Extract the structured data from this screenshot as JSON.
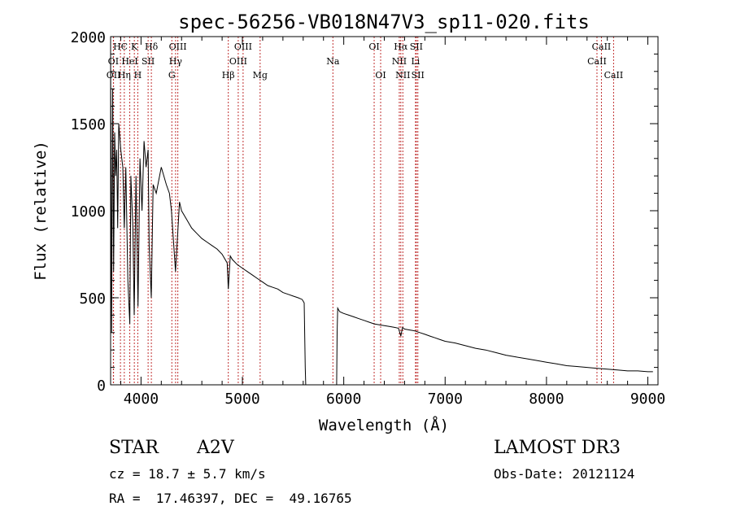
{
  "chart_data": {
    "type": "line",
    "title": "spec-56256-VB018N47V3_sp11-020.fits",
    "xlabel": "Wavelength (Å)",
    "ylabel": "Flux (relative)",
    "xlim": [
      3700,
      9100
    ],
    "ylim": [
      0,
      2000
    ],
    "x_ticks": [
      4000,
      5000,
      6000,
      7000,
      8000,
      9000
    ],
    "x_tick_labels": [
      "4000",
      "5000",
      "6000",
      "7000",
      "8000",
      "9000"
    ],
    "y_ticks": [
      0,
      500,
      1000,
      1500,
      2000
    ],
    "y_tick_labels": [
      "0",
      "500",
      "1000",
      "1500",
      "2000"
    ],
    "grid": false,
    "spectrum": {
      "name": "flux",
      "x": [
        3700,
        3710,
        3720,
        3730,
        3740,
        3750,
        3760,
        3770,
        3780,
        3800,
        3820,
        3835,
        3850,
        3870,
        3889,
        3900,
        3920,
        3933,
        3950,
        3970,
        3990,
        4010,
        4030,
        4050,
        4070,
        4080,
        4101,
        4120,
        4150,
        4200,
        4250,
        4280,
        4300,
        4340,
        4380,
        4400,
        4450,
        4500,
        4550,
        4600,
        4650,
        4700,
        4750,
        4800,
        4850,
        4861,
        4880,
        4900,
        4950,
        5000,
        5050,
        5100,
        5150,
        5200,
        5250,
        5300,
        5350,
        5400,
        5450,
        5500,
        5550,
        5590,
        5600,
        5610,
        5620,
        5625,
        5630,
        5700,
        5800,
        5900,
        5930,
        5935,
        5940,
        5950,
        5960,
        6000,
        6050,
        6100,
        6150,
        6200,
        6250,
        6300,
        6350,
        6400,
        6450,
        6500,
        6540,
        6563,
        6580,
        6600,
        6650,
        6700,
        6750,
        6800,
        6850,
        6900,
        6950,
        7000,
        7100,
        7200,
        7300,
        7400,
        7500,
        7600,
        7700,
        7800,
        7900,
        8000,
        8100,
        8200,
        8300,
        8400,
        8500,
        8600,
        8700,
        8800,
        8900,
        9000,
        9050
      ],
      "y": [
        1900,
        300,
        1700,
        650,
        1450,
        1200,
        1350,
        900,
        1500,
        1350,
        1250,
        900,
        1250,
        600,
        350,
        1200,
        900,
        400,
        1200,
        450,
        1300,
        1000,
        1400,
        1250,
        1350,
        800,
        500,
        1150,
        1100,
        1250,
        1150,
        1100,
        1000,
        650,
        1050,
        1000,
        950,
        900,
        870,
        840,
        820,
        800,
        780,
        750,
        700,
        550,
        740,
        720,
        690,
        670,
        650,
        630,
        610,
        590,
        570,
        560,
        550,
        530,
        520,
        510,
        500,
        490,
        480,
        470,
        100,
        0,
        0,
        0,
        0,
        0,
        0,
        300,
        440,
        430,
        420,
        410,
        400,
        390,
        380,
        370,
        360,
        350,
        345,
        340,
        335,
        330,
        325,
        280,
        330,
        320,
        315,
        310,
        300,
        290,
        280,
        270,
        260,
        250,
        240,
        225,
        210,
        200,
        185,
        170,
        160,
        150,
        140,
        130,
        120,
        110,
        105,
        100,
        95,
        90,
        85,
        80,
        80,
        75,
        75
      ]
    },
    "lines": [
      {
        "label": "HЄ",
        "wave": 3797,
        "row": 1
      },
      {
        "label": "K",
        "wave": 3934,
        "row": 1
      },
      {
        "label": "Hδ",
        "wave": 4102,
        "row": 1
      },
      {
        "label": "OIII",
        "wave": 4363,
        "row": 1
      },
      {
        "label": "OIII",
        "wave": 5007,
        "row": 1
      },
      {
        "label": "OI",
        "wave": 6300,
        "row": 1
      },
      {
        "label": "Hα",
        "wave": 6563,
        "row": 1
      },
      {
        "label": "SII",
        "wave": 6716,
        "row": 1
      },
      {
        "label": "CaII",
        "wave": 8542,
        "row": 1
      },
      {
        "label": "OI",
        "wave": 3727,
        "row": 2
      },
      {
        "label": "HeI",
        "wave": 3889,
        "row": 2
      },
      {
        "label": "SII",
        "wave": 4070,
        "row": 2
      },
      {
        "label": "Hγ",
        "wave": 4341,
        "row": 2
      },
      {
        "label": "OIII",
        "wave": 4959,
        "row": 2
      },
      {
        "label": "Na",
        "wave": 5893,
        "row": 2
      },
      {
        "label": "NII",
        "wave": 6548,
        "row": 2
      },
      {
        "label": "Li",
        "wave": 6708,
        "row": 2
      },
      {
        "label": "CaII",
        "wave": 8498,
        "row": 2
      },
      {
        "label": "OII",
        "wave": 3729,
        "row": 3
      },
      {
        "label": "Hη",
        "wave": 3835,
        "row": 3
      },
      {
        "label": "H",
        "wave": 3968,
        "row": 3
      },
      {
        "label": "G",
        "wave": 4304,
        "row": 3
      },
      {
        "label": "Hβ",
        "wave": 4861,
        "row": 3
      },
      {
        "label": "Mg",
        "wave": 5175,
        "row": 3
      },
      {
        "label": "OI",
        "wave": 6364,
        "row": 3
      },
      {
        "label": "NII",
        "wave": 6583,
        "row": 3
      },
      {
        "label": "SII",
        "wave": 6731,
        "row": 3
      },
      {
        "label": "CaII",
        "wave": 8662,
        "row": 3
      }
    ]
  },
  "info": {
    "class_label": "STAR",
    "subclass": "A2V",
    "survey": "LAMOST DR3",
    "redshift": "cz = 18.7 ± 5.7 km/s",
    "obs_date": "Obs-Date: 20121124",
    "coords": "RA =  17.46397, DEC =  49.16765"
  },
  "colors": {
    "spectrum": "#000000",
    "line_marker": "#c03030",
    "axis": "#000000"
  }
}
